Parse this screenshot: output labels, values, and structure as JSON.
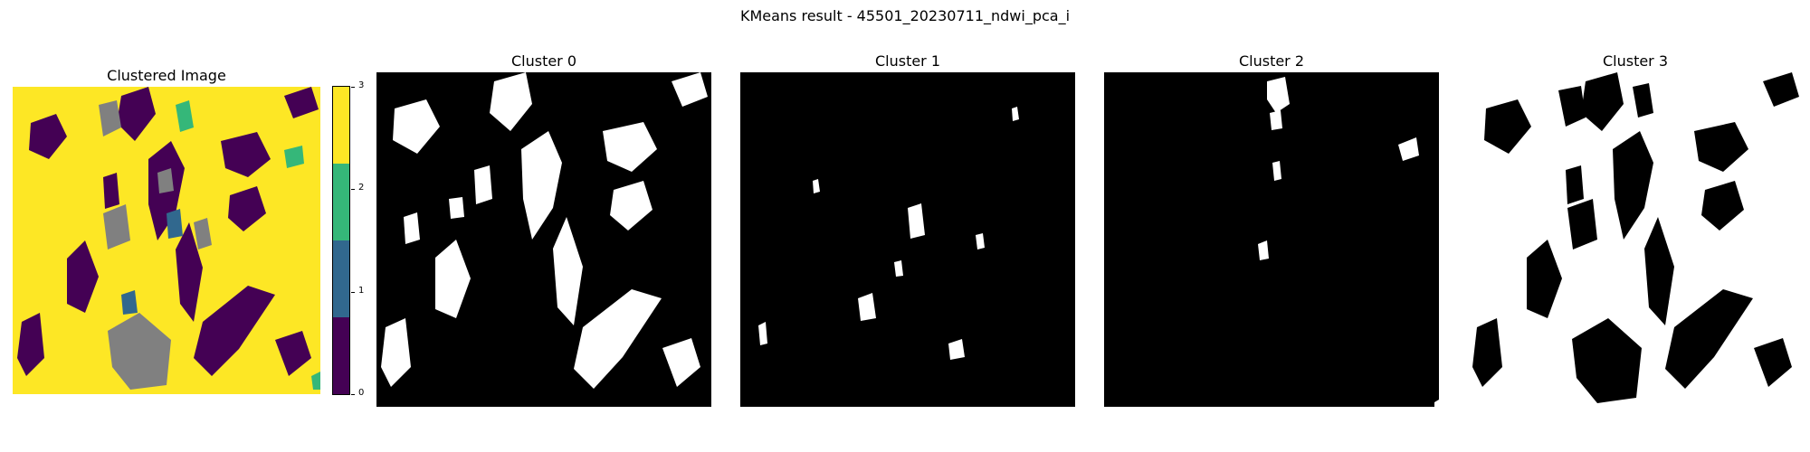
{
  "figure": {
    "suptitle": "KMeans result - 45501_20230711_ndwi_pca_i"
  },
  "panels": [
    {
      "title": "Clustered Image"
    },
    {
      "title": "Cluster 0"
    },
    {
      "title": "Cluster 1"
    },
    {
      "title": "Cluster 2"
    },
    {
      "title": "Cluster 3"
    }
  ],
  "colorbar": {
    "ticks": [
      "3",
      "2",
      "1",
      "0"
    ],
    "colors": [
      "#fde725",
      "#35b779",
      "#31688e",
      "#440154"
    ],
    "mask_color": "#808080"
  }
}
